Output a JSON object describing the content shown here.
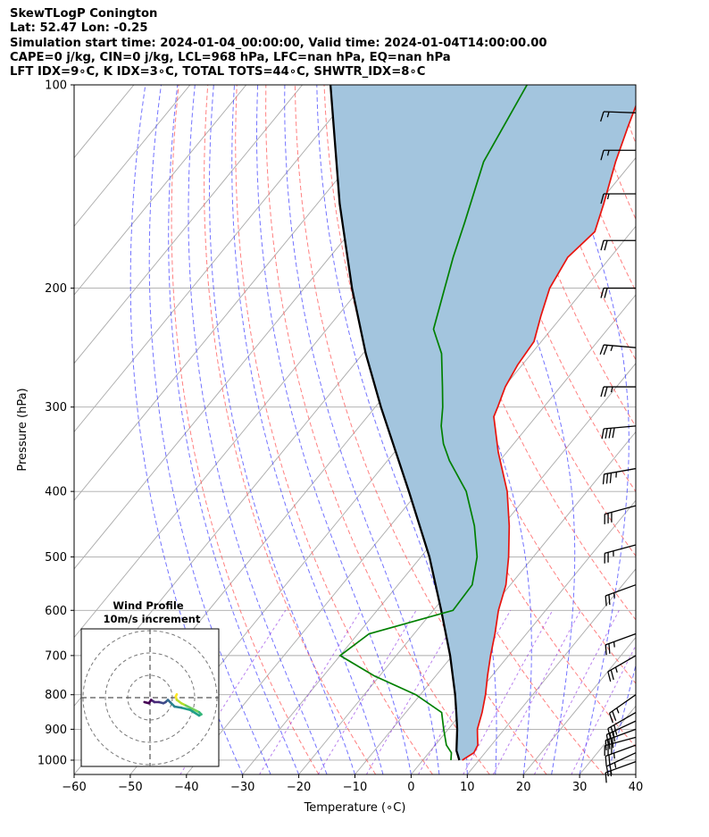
{
  "header": {
    "line1": "SkewTLogP Conington",
    "line2": "Lat: 52.47   Lon: -0.25",
    "line3": "Simulation start time: 2024-01-04_00:00:00, Valid time: 2024-01-04T14:00:00.00",
    "line4": "CAPE=0 j/kg, CIN=0 j/kg, LCL=968 hPa, LFC=nan hPa, EQ=nan hPa",
    "line5": "LFT IDX=9∘C, K IDX=3∘C, TOTAL TOTS=44∘C, SHWTR_IDX=8∘C"
  },
  "colors": {
    "temperature": "#e8140e",
    "dewpoint": "#008000",
    "parcel": "#000000",
    "shade": "#a3c5de",
    "dry_adiabat": "#ff5555",
    "moist_adiabat": "#4444ff",
    "mixing_ratio": "#8a2be2",
    "isotherm": "#aaaaaa",
    "isobar": "#aaaaaa"
  },
  "chart_data": {
    "type": "skewt",
    "xlabel": "Temperature (∘C)",
    "ylabel": "Pressure (hPa)",
    "xlim": [
      -60,
      40
    ],
    "ylim": [
      1050,
      100
    ],
    "x_ticks": [
      "−60",
      "−50",
      "−40",
      "−30",
      "−20",
      "−10",
      "0",
      "10",
      "20",
      "30",
      "40"
    ],
    "y_ticks": [
      "100",
      "200",
      "300",
      "400",
      "500",
      "600",
      "700",
      "800",
      "900",
      "1000"
    ],
    "y_tick_values": [
      100,
      200,
      300,
      400,
      500,
      600,
      700,
      800,
      900,
      1000
    ],
    "temperature_profile": [
      {
        "p": 1000,
        "t": 7.0
      },
      {
        "p": 975,
        "t": 8.0
      },
      {
        "p": 950,
        "t": 7.6
      },
      {
        "p": 925,
        "t": 6.4
      },
      {
        "p": 900,
        "t": 5.2
      },
      {
        "p": 850,
        "t": 3.6
      },
      {
        "p": 800,
        "t": 1.6
      },
      {
        "p": 750,
        "t": -0.8
      },
      {
        "p": 700,
        "t": -3.2
      },
      {
        "p": 650,
        "t": -5.6
      },
      {
        "p": 600,
        "t": -8.4
      },
      {
        "p": 550,
        "t": -10.8
      },
      {
        "p": 500,
        "t": -14.4
      },
      {
        "p": 450,
        "t": -18.8
      },
      {
        "p": 400,
        "t": -24.2
      },
      {
        "p": 350,
        "t": -31.5
      },
      {
        "p": 310,
        "t": -37.5
      },
      {
        "p": 300,
        "t": -38.2
      },
      {
        "p": 280,
        "t": -39.8
      },
      {
        "p": 260,
        "t": -40.8
      },
      {
        "p": 240,
        "t": -41.3
      },
      {
        "p": 220,
        "t": -43.8
      },
      {
        "p": 200,
        "t": -46.3
      },
      {
        "p": 180,
        "t": -47.6
      },
      {
        "p": 165,
        "t": -46.5
      },
      {
        "p": 150,
        "t": -49.0
      },
      {
        "p": 130,
        "t": -53.0
      },
      {
        "p": 115,
        "t": -56.0
      },
      {
        "p": 100,
        "t": -59.2
      }
    ],
    "dewpoint_profile": [
      {
        "p": 1000,
        "t": 5.0
      },
      {
        "p": 975,
        "t": 4.0
      },
      {
        "p": 950,
        "t": 2.0
      },
      {
        "p": 900,
        "t": -0.8
      },
      {
        "p": 850,
        "t": -3.6
      },
      {
        "p": 800,
        "t": -10.8
      },
      {
        "p": 750,
        "t": -21.0
      },
      {
        "p": 700,
        "t": -30.0
      },
      {
        "p": 650,
        "t": -28.0
      },
      {
        "p": 600,
        "t": -16.5
      },
      {
        "p": 550,
        "t": -16.8
      },
      {
        "p": 500,
        "t": -20.0
      },
      {
        "p": 450,
        "t": -25.0
      },
      {
        "p": 400,
        "t": -31.5
      },
      {
        "p": 360,
        "t": -39.0
      },
      {
        "p": 340,
        "t": -42.5
      },
      {
        "p": 320,
        "t": -45.5
      },
      {
        "p": 300,
        "t": -48.0
      },
      {
        "p": 280,
        "t": -51.0
      },
      {
        "p": 250,
        "t": -56.0
      },
      {
        "p": 230,
        "t": -61.0
      },
      {
        "p": 200,
        "t": -65.0
      },
      {
        "p": 180,
        "t": -68.0
      },
      {
        "p": 160,
        "t": -71.0
      },
      {
        "p": 130,
        "t": -76.5
      },
      {
        "p": 100,
        "t": -80.0
      }
    ],
    "parcel_profile": [
      {
        "p": 1000,
        "t": 6.5
      },
      {
        "p": 968,
        "t": 4.6
      },
      {
        "p": 900,
        "t": 1.6
      },
      {
        "p": 850,
        "t": -1.0
      },
      {
        "p": 800,
        "t": -3.8
      },
      {
        "p": 700,
        "t": -10.4
      },
      {
        "p": 600,
        "t": -18.6
      },
      {
        "p": 500,
        "t": -28.5
      },
      {
        "p": 400,
        "t": -41.7
      },
      {
        "p": 300,
        "t": -59.0
      },
      {
        "p": 250,
        "t": -69.5
      },
      {
        "p": 200,
        "t": -81.5
      },
      {
        "p": 150,
        "t": -96.0
      },
      {
        "p": 100,
        "t": -115.0
      }
    ],
    "wind_barbs": [
      {
        "p": 1005,
        "speed_kt": 15,
        "dir": 250
      },
      {
        "p": 975,
        "speed_kt": 25,
        "dir": 245
      },
      {
        "p": 950,
        "speed_kt": 25,
        "dir": 250
      },
      {
        "p": 925,
        "speed_kt": 30,
        "dir": 255
      },
      {
        "p": 900,
        "speed_kt": 30,
        "dir": 250
      },
      {
        "p": 875,
        "speed_kt": 30,
        "dir": 245
      },
      {
        "p": 850,
        "speed_kt": 30,
        "dir": 240
      },
      {
        "p": 800,
        "speed_kt": 25,
        "dir": 235
      },
      {
        "p": 700,
        "speed_kt": 25,
        "dir": 240
      },
      {
        "p": 650,
        "speed_kt": 25,
        "dir": 250
      },
      {
        "p": 550,
        "speed_kt": 25,
        "dir": 250
      },
      {
        "p": 480,
        "speed_kt": 25,
        "dir": 255
      },
      {
        "p": 420,
        "speed_kt": 30,
        "dir": 255
      },
      {
        "p": 370,
        "speed_kt": 35,
        "dir": 260
      },
      {
        "p": 320,
        "speed_kt": 40,
        "dir": 265
      },
      {
        "p": 280,
        "speed_kt": 25,
        "dir": 270
      },
      {
        "p": 245,
        "speed_kt": 25,
        "dir": 275
      },
      {
        "p": 200,
        "speed_kt": 20,
        "dir": 270
      },
      {
        "p": 170,
        "speed_kt": 20,
        "dir": 270
      },
      {
        "p": 145,
        "speed_kt": 15,
        "dir": 270
      },
      {
        "p": 125,
        "speed_kt": 15,
        "dir": 270
      },
      {
        "p": 110,
        "speed_kt": 15,
        "dir": 272
      }
    ],
    "hodograph": {
      "title": "Wind Profile",
      "subtitle": "10m/s increment",
      "rings_ms": [
        10,
        20,
        30
      ],
      "points": [
        {
          "u": 12.0,
          "v": -1.5
        },
        {
          "u": 11.5,
          "v": -0.5
        },
        {
          "u": 12.0,
          "v": 1.0
        },
        {
          "u": 14.0,
          "v": 2.5
        },
        {
          "u": 16.0,
          "v": 3.5
        },
        {
          "u": 19.0,
          "v": 5.0
        },
        {
          "u": 22.0,
          "v": 6.5
        },
        {
          "u": 23.0,
          "v": 7.5
        },
        {
          "u": 22.0,
          "v": 8.0
        },
        {
          "u": 18.0,
          "v": 5.5
        },
        {
          "u": 14.0,
          "v": 4.5
        },
        {
          "u": 11.0,
          "v": 4.0
        },
        {
          "u": 9.0,
          "v": 2.0
        },
        {
          "u": 8.0,
          "v": 1.0
        },
        {
          "u": 7.0,
          "v": 2.0
        },
        {
          "u": 6.0,
          "v": 2.5
        },
        {
          "u": 4.0,
          "v": 2.0
        },
        {
          "u": 2.0,
          "v": 2.0
        },
        {
          "u": 0.5,
          "v": 1.0
        },
        {
          "u": -0.5,
          "v": 2.5
        },
        {
          "u": -2.5,
          "v": 2.0
        }
      ]
    }
  }
}
